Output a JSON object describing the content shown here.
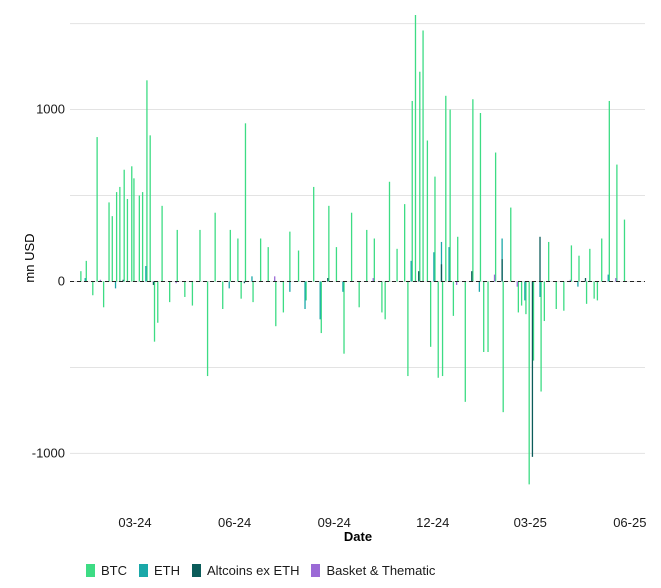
{
  "chart_data": {
    "type": "bar",
    "title": "",
    "xlabel": "Date",
    "ylabel": "mn USD",
    "ylim": [
      -1300,
      1550
    ],
    "yticks": [
      -1000,
      0,
      1000
    ],
    "ytick_labels": [
      "-1000",
      "0",
      "1000"
    ],
    "xlim": [
      "2024-01-01",
      "2025-06-15"
    ],
    "xticks": [
      "2024-03-01",
      "2024-06-01",
      "2024-09-01",
      "2024-12-01",
      "2025-03-01",
      "2025-06-01"
    ],
    "xtick_labels": [
      "03-24",
      "06-24",
      "09-24",
      "12-24",
      "03-25",
      "06-25"
    ],
    "grid": "horizontal",
    "zero_line": "dashed",
    "legend_position": "bottom",
    "series": [
      {
        "name": "BTC",
        "color": "#3ddc84",
        "x": [
          "2024-01-11",
          "2024-01-16",
          "2024-01-22",
          "2024-01-26",
          "2024-02-01",
          "2024-02-06",
          "2024-02-09",
          "2024-02-13",
          "2024-02-16",
          "2024-02-20",
          "2024-02-23",
          "2024-02-27",
          "2024-02-29",
          "2024-03-05",
          "2024-03-08",
          "2024-03-12",
          "2024-03-15",
          "2024-03-19",
          "2024-03-22",
          "2024-03-26",
          "2024-04-02",
          "2024-04-09",
          "2024-04-16",
          "2024-04-23",
          "2024-04-30",
          "2024-05-07",
          "2024-05-14",
          "2024-05-21",
          "2024-05-28",
          "2024-06-04",
          "2024-06-07",
          "2024-06-11",
          "2024-06-18",
          "2024-06-25",
          "2024-07-02",
          "2024-07-09",
          "2024-07-16",
          "2024-07-22",
          "2024-07-30",
          "2024-08-06",
          "2024-08-13",
          "2024-08-20",
          "2024-08-27",
          "2024-09-03",
          "2024-09-10",
          "2024-09-17",
          "2024-09-24",
          "2024-10-01",
          "2024-10-08",
          "2024-10-15",
          "2024-10-18",
          "2024-10-22",
          "2024-10-29",
          "2024-11-05",
          "2024-11-08",
          "2024-11-12",
          "2024-11-15",
          "2024-11-19",
          "2024-11-22",
          "2024-11-26",
          "2024-11-29",
          "2024-12-03",
          "2024-12-06",
          "2024-12-10",
          "2024-12-13",
          "2024-12-17",
          "2024-12-20",
          "2024-12-24",
          "2024-12-31",
          "2025-01-07",
          "2025-01-14",
          "2025-01-17",
          "2025-01-21",
          "2025-01-28",
          "2025-02-04",
          "2025-02-11",
          "2025-02-18",
          "2025-02-21",
          "2025-02-25",
          "2025-02-28",
          "2025-03-04",
          "2025-03-11",
          "2025-03-14",
          "2025-03-18",
          "2025-03-25",
          "2025-04-01",
          "2025-04-08",
          "2025-04-15",
          "2025-04-22",
          "2025-04-25",
          "2025-04-29",
          "2025-05-02",
          "2025-05-06",
          "2025-05-13",
          "2025-05-20",
          "2025-05-27"
        ],
        "values": [
          60,
          120,
          -80,
          840,
          -150,
          460,
          380,
          520,
          550,
          650,
          480,
          670,
          600,
          500,
          520,
          1170,
          850,
          -350,
          -240,
          440,
          -120,
          300,
          -90,
          -140,
          300,
          -550,
          400,
          -160,
          300,
          250,
          -100,
          920,
          -120,
          250,
          200,
          -260,
          -180,
          290,
          180,
          -110,
          550,
          -300,
          440,
          200,
          -420,
          400,
          -150,
          300,
          250,
          -180,
          -220,
          580,
          190,
          450,
          -550,
          1050,
          1550,
          1220,
          1460,
          820,
          -380,
          610,
          -560,
          -550,
          1080,
          1000,
          -200,
          260,
          -700,
          1060,
          980,
          -410,
          -410,
          750,
          -760,
          430,
          -180,
          -140,
          -190,
          -1180,
          -460,
          -640,
          -230,
          230,
          -160,
          -170,
          210,
          150,
          -130,
          190,
          -100,
          -110,
          250,
          1050,
          680,
          360
        ],
        "values_bar_label": []
      },
      {
        "name": "ETH",
        "color": "#1aa8a8",
        "x": [
          "2024-01-15",
          "2024-02-12",
          "2024-03-11",
          "2024-05-27",
          "2024-06-17",
          "2024-07-22",
          "2024-08-05",
          "2024-08-19",
          "2024-09-09",
          "2024-11-11",
          "2024-12-02",
          "2024-12-09",
          "2024-12-16",
          "2025-01-13",
          "2025-02-03",
          "2025-02-24",
          "2025-03-10",
          "2025-04-14",
          "2025-05-12"
        ],
        "values": [
          20,
          -40,
          90,
          -40,
          30,
          -60,
          -160,
          -220,
          -60,
          120,
          170,
          230,
          200,
          -60,
          250,
          -110,
          -90,
          -30,
          40
        ]
      },
      {
        "name": "Altcoins ex ETH",
        "color": "#0b5c5a",
        "x": [
          "2024-02-19",
          "2024-03-18",
          "2024-06-10",
          "2024-08-26",
          "2024-11-18",
          "2024-12-09",
          "2025-01-06",
          "2025-02-03",
          "2025-03-03",
          "2025-03-10",
          "2025-04-21"
        ],
        "values": [
          10,
          -20,
          -10,
          20,
          60,
          100,
          60,
          130,
          -1020,
          260,
          20
        ]
      },
      {
        "name": "Basket & Thematic",
        "color": "#9b6ad6",
        "x": [
          "2024-01-29",
          "2024-04-08",
          "2024-07-08",
          "2024-10-07",
          "2024-12-23",
          "2025-01-27",
          "2025-02-17",
          "2025-04-07",
          "2025-05-19"
        ],
        "values": [
          10,
          -10,
          30,
          20,
          -20,
          40,
          -30,
          10,
          20
        ]
      }
    ]
  }
}
